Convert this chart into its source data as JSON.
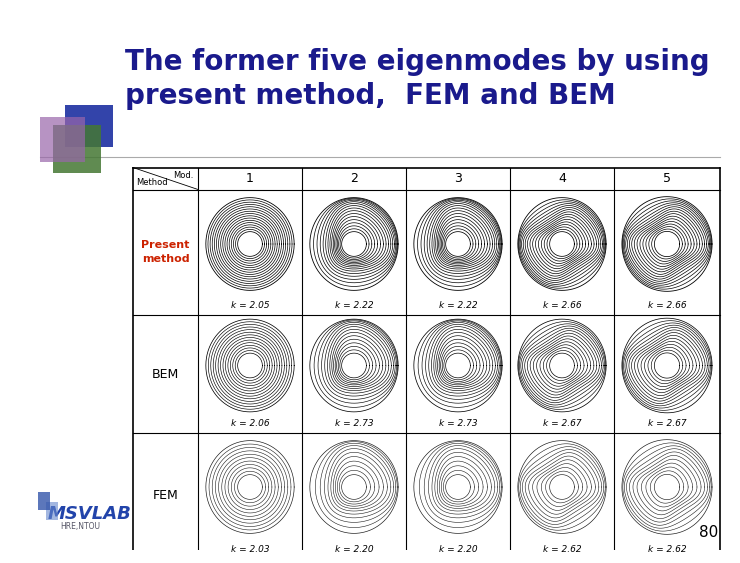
{
  "title_line1": "The former five eigenmodes by using",
  "title_line2": "present method,  FEM and BEM",
  "title_color": "#1a1a8c",
  "title_fontsize": 20,
  "background_color": "#ffffff",
  "page_number": "80",
  "present_k_values": [
    "k = 2.05",
    "k = 2.22",
    "k = 2.22",
    "k = 2.66",
    "k = 2.66"
  ],
  "bem_k_values": [
    "k = 2.06",
    "k = 2.73",
    "k = 2.73",
    "k = 2.67",
    "k = 2.67"
  ],
  "fem_k_values": [
    "k = 2.03",
    "k = 2.20",
    "k = 2.20",
    "k = 2.62",
    "k = 2.62"
  ],
  "present_method_color": "#cc2200",
  "msvlab_color": "#2244aa",
  "deco_blue": "#3344aa",
  "deco_green": "#447733",
  "deco_purple": "#9966aa"
}
